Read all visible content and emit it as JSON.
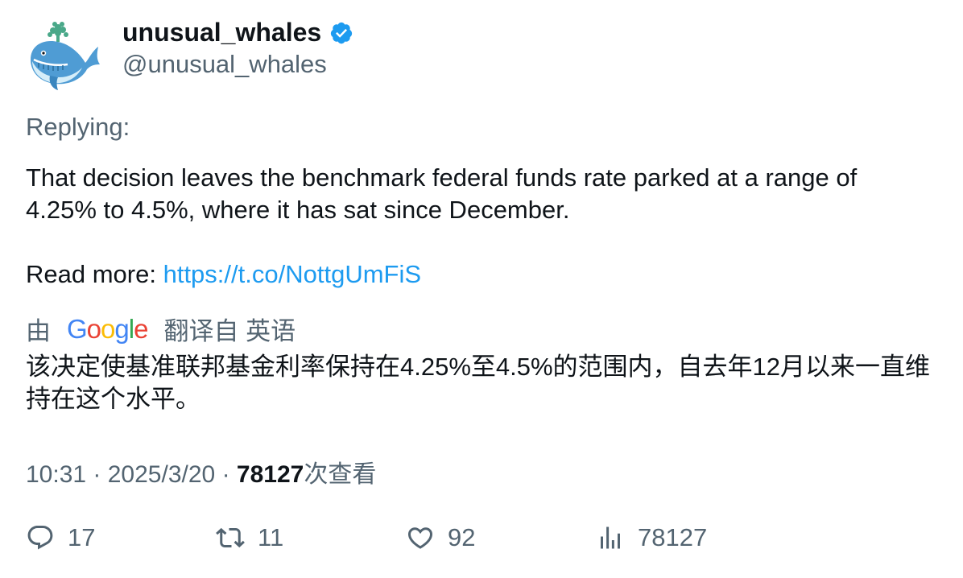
{
  "author": {
    "display_name": "unusual_whales",
    "handle": "@unusual_whales",
    "verified": true
  },
  "tweet": {
    "replying_label": "Replying:",
    "text": "That decision leaves the benchmark federal funds rate parked at a range of 4.25% to 4.5%, where it has sat since December.",
    "read_more_label": "Read more:",
    "link": "https://t.co/NottgUmFiS"
  },
  "translation": {
    "prefix": "由",
    "provider": "Google",
    "suffix": "翻译自 英语",
    "text": "该决定使基准联邦基金利率保持在4.25%至4.5%的范围内，自去年12月以来一直维持在这个水平。"
  },
  "meta": {
    "time": "10:31",
    "date": "2025/3/20",
    "views": "78127",
    "views_label": "次查看"
  },
  "actions": {
    "replies": "17",
    "retweets": "11",
    "likes": "92",
    "views": "78127"
  },
  "colors": {
    "link": "#1d9bf0",
    "secondary_text": "#536471",
    "primary_text": "#0f1419",
    "verified": "#1d9bf0"
  }
}
